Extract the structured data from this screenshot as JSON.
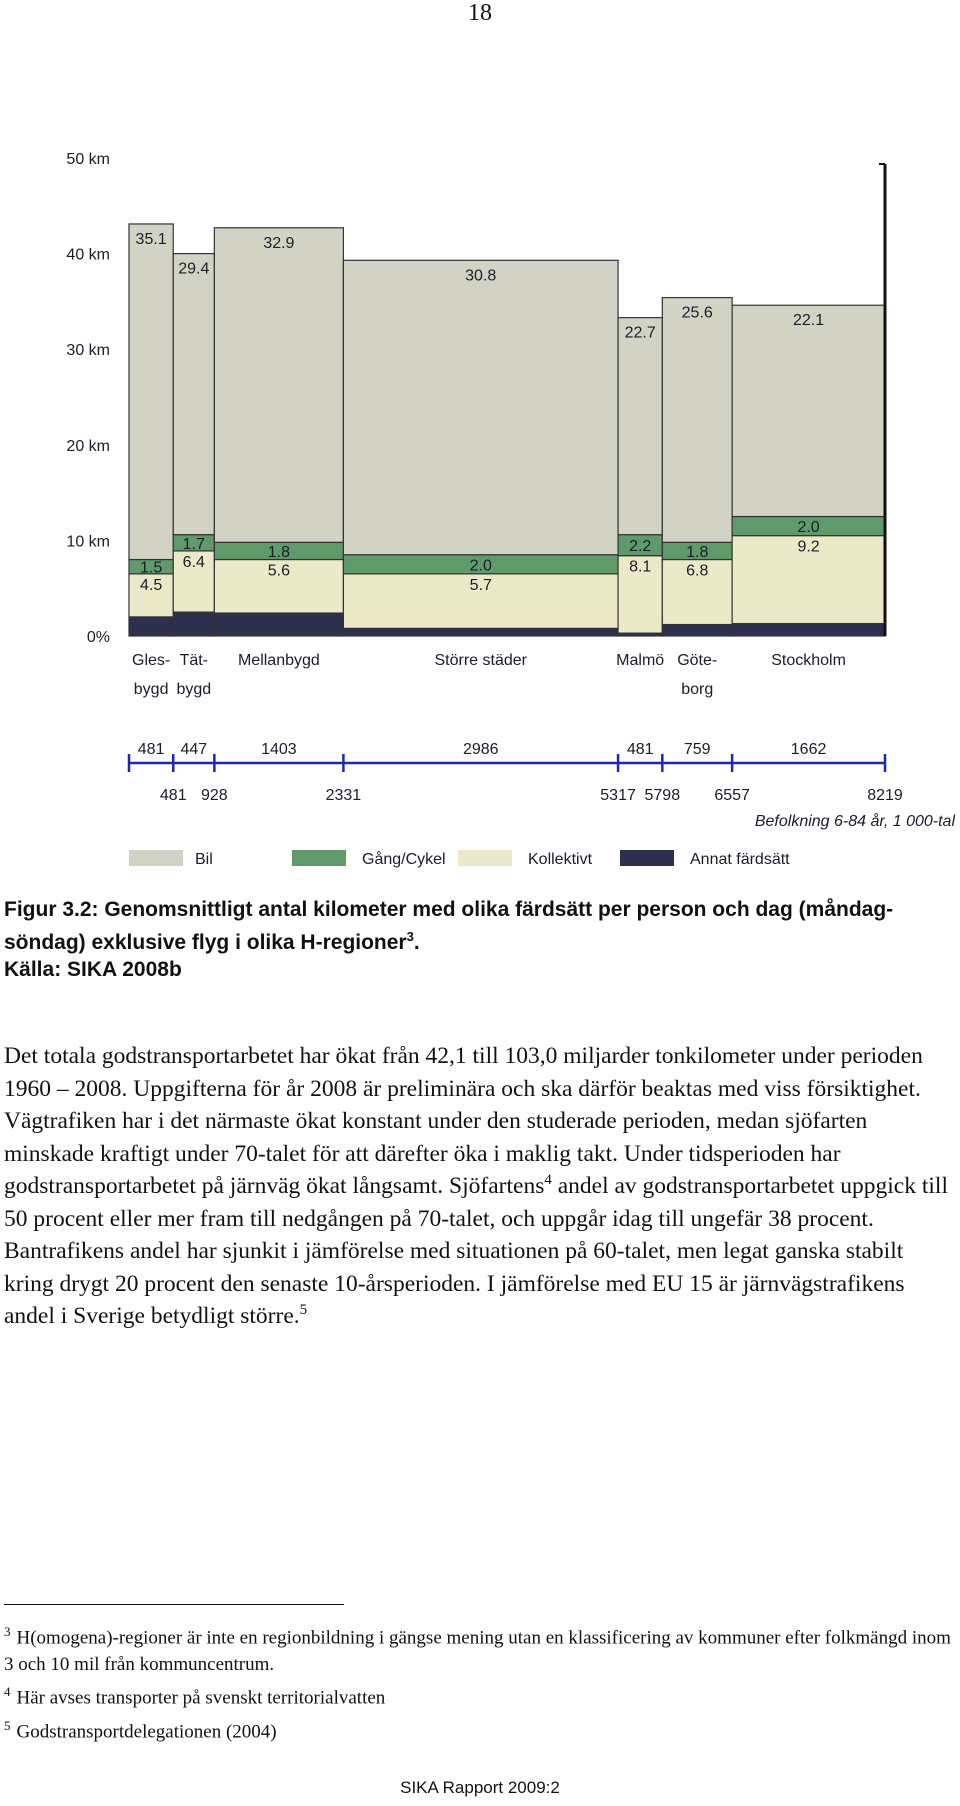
{
  "page_number": "18",
  "chart_data": {
    "type": "marimekko",
    "categories": [
      [
        "Gles-",
        "bygd"
      ],
      [
        "Tät-",
        "bygd"
      ],
      [
        "Mellanbygd"
      ],
      [
        "Större städer"
      ],
      [
        "Malmö"
      ],
      [
        "Göte-",
        "borg"
      ],
      [
        "Stockholm"
      ]
    ],
    "widths": [
      481,
      447,
      1403,
      2986,
      481,
      759,
      1662
    ],
    "cumulative": [
      481,
      928,
      2331,
      5317,
      5798,
      6557,
      8219
    ],
    "xlabel": "Befolkning 6-84 år, 1 000-tal",
    "ylim": [
      0,
      50
    ],
    "yticks": [
      {
        "value": 0,
        "label": "0%"
      },
      {
        "value": 10,
        "label": "10 km"
      },
      {
        "value": 20,
        "label": "20 km"
      },
      {
        "value": 30,
        "label": "30 km"
      },
      {
        "value": 40,
        "label": "40 km"
      },
      {
        "value": 50,
        "label": "50 km"
      }
    ],
    "series": [
      {
        "name": "Bil",
        "color": "#d3d3c5",
        "values": [
          35.1,
          29.4,
          32.9,
          30.8,
          22.7,
          25.6,
          22.1
        ]
      },
      {
        "name": "Gång/Cykel",
        "color": "#5f9a6b",
        "values": [
          1.5,
          1.7,
          1.8,
          2.0,
          2.2,
          1.8,
          2.0
        ],
        "value_labels": [
          "1.5",
          "1.7",
          "1.8",
          "2.0",
          "2.2",
          "1.8",
          "2.0"
        ]
      },
      {
        "name": "Kollektivt",
        "color": "#ece9c9",
        "values": [
          4.5,
          6.4,
          5.6,
          5.7,
          8.1,
          6.8,
          9.2
        ]
      },
      {
        "name": "Annat färdsätt",
        "color": "#2c2f4e",
        "values": [
          2.0,
          2.5,
          2.4,
          0.8,
          0.3,
          1.2,
          1.3
        ],
        "data_labels": false
      }
    ]
  },
  "caption": {
    "text": "Figur 3.2: Genomsnittligt antal kilometer med olika färdsätt per person och dag (måndag-söndag) exklusive flyg i olika H-regioner",
    "sup": "3",
    "end": ".",
    "source": "Källa: SIKA 2008b"
  },
  "body": [
    {
      "text": "Det totala godstransportarbetet har ökat från 42,1 till 103,0 miljarder tonkilometer under perioden 1960 – 2008. Uppgifterna för år 2008 är preliminära och ska därför beaktas med viss försiktighet. Vägtrafiken har i det närmaste ökat konstant under den studerade perioden, medan sjöfarten minskade kraftigt under 70-talet för att därefter öka i maklig takt. Under tidsperioden har godstransportarbetet på järnväg ökat långsamt. Sjöfartens",
      "sup": "4"
    },
    {
      "text": " andel av godstransportarbetet uppgick till 50 procent eller mer fram till nedgången på 70-talet, och uppgår idag till ungefär 38 procent. Bantrafikens andel har sjunkit i jämförelse med situationen på 60-talet, men legat ganska stabilt kring drygt 20 procent den senaste 10-årsperioden. I jämförelse med EU 15 är järnvägstrafikens andel i Sverige betydligt större.",
      "sup": "5"
    }
  ],
  "footnotes": [
    {
      "number": "3",
      "text": "H(omogena)-regioner är inte en regionbildning i gängse mening utan en klassificering av kommuner efter folkmängd inom 3 och 10 mil från kommuncentrum."
    },
    {
      "number": "4",
      "text": "Här avses transporter på svenskt territorialvatten"
    },
    {
      "number": "5",
      "text": "Godstransportdelegationen (2004)"
    }
  ],
  "footer": "SIKA Rapport 2009:2"
}
